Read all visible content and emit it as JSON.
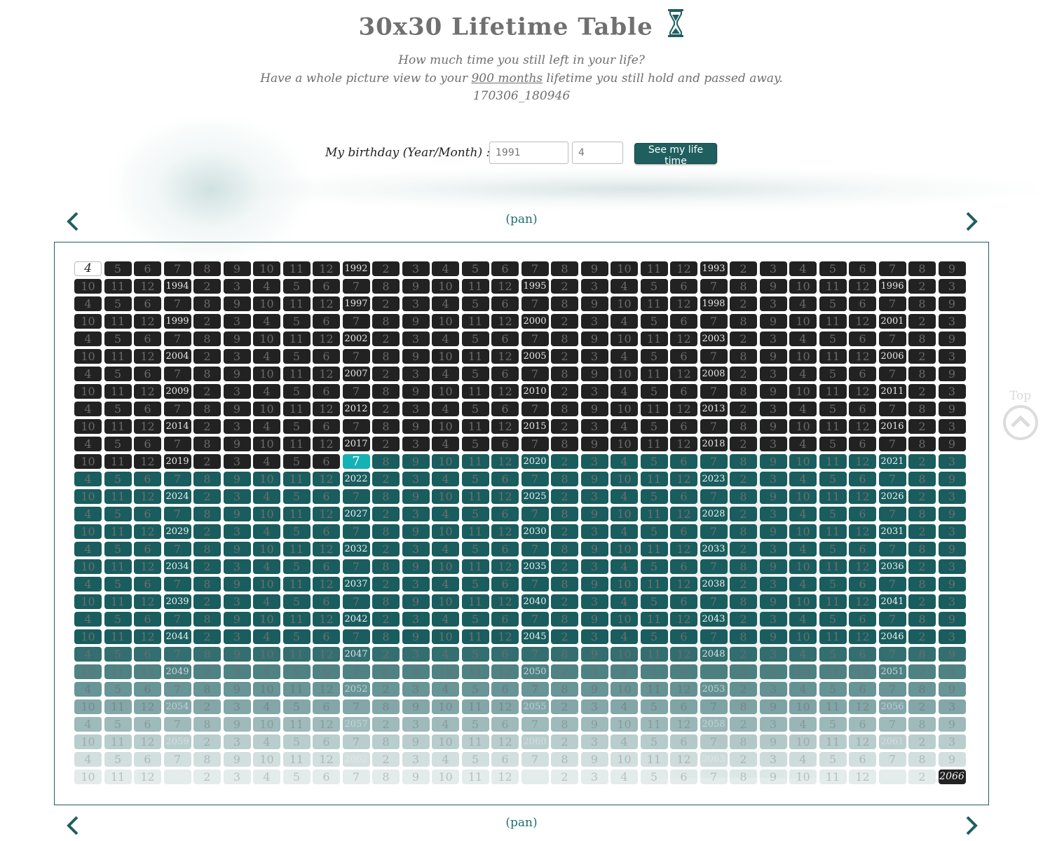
{
  "header": {
    "title": "30x30 Lifetime Table",
    "subtitle_line1": "How much time you still left in your life?",
    "subtitle_line2_before": "Have a whole picture view to your ",
    "subtitle_line2_link": "900 months",
    "subtitle_line2_after": " lifetime you still hold and passed away.",
    "version": "170306_180946"
  },
  "form": {
    "label": "My birthday (Year/Month) :",
    "year_placeholder": "1991",
    "month_placeholder": "4",
    "submit_label": "See my life time"
  },
  "pan": {
    "top_label": "(pan)",
    "bottom_label": "(pan)"
  },
  "top_link": {
    "label": "Top"
  },
  "grid": {
    "birth_year": 1991,
    "birth_month": 4,
    "current_year": 2019,
    "current_month": 7,
    "end_year": 2066,
    "total_months": 900,
    "columns": 30,
    "rows": 30,
    "colors": {
      "passed": "#222222",
      "current": "#15b1b3",
      "future": "#195d5e"
    }
  }
}
